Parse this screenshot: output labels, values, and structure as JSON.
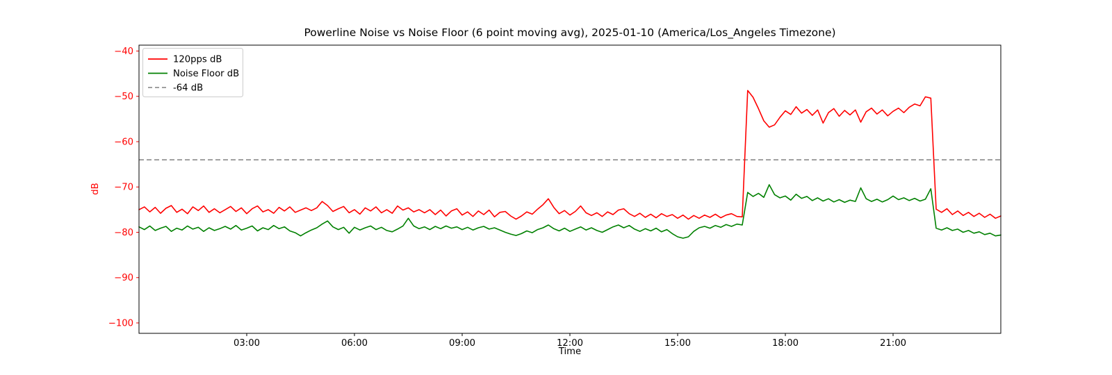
{
  "chart_data": {
    "type": "line",
    "title": "Powerline Noise vs Noise Floor (6 point moving avg), 2025-01-10 (America/Los_Angeles Timezone)",
    "xlabel": "Time",
    "ylabel": "dB",
    "xlim_hours": [
      0,
      24
    ],
    "ylim": [
      -102.3,
      -38.7
    ],
    "grid": false,
    "legend_position": "upper left",
    "x_ticks": [
      {
        "hours": 3,
        "label": "03:00"
      },
      {
        "hours": 6,
        "label": "06:00"
      },
      {
        "hours": 9,
        "label": "09:00"
      },
      {
        "hours": 12,
        "label": "12:00"
      },
      {
        "hours": 15,
        "label": "15:00"
      },
      {
        "hours": 18,
        "label": "18:00"
      },
      {
        "hours": 21,
        "label": "21:00"
      }
    ],
    "y_ticks": [
      {
        "value": -40,
        "label": "−40"
      },
      {
        "value": -50,
        "label": "−50"
      },
      {
        "value": -60,
        "label": "−60"
      },
      {
        "value": -70,
        "label": "−70"
      },
      {
        "value": -80,
        "label": "−80"
      },
      {
        "value": -90,
        "label": "−90"
      },
      {
        "value": -100,
        "label": "−100"
      }
    ],
    "y_tick_color": "#ff0000",
    "x_tick_color": "#000000",
    "threshold": {
      "label": "-64 dB",
      "value": -64,
      "style": "dashed",
      "color": "#808080"
    },
    "x_hours": {
      "start": 0,
      "step": 0.15,
      "count": 161
    },
    "series": [
      {
        "name": "120pps dB",
        "color": "#ff0000",
        "values": [
          -75.0,
          -74.4,
          -75.5,
          -74.5,
          -75.8,
          -74.7,
          -74.1,
          -75.6,
          -74.9,
          -75.9,
          -74.4,
          -75.2,
          -74.2,
          -75.6,
          -74.8,
          -75.7,
          -75.0,
          -74.3,
          -75.4,
          -74.6,
          -75.9,
          -74.8,
          -74.2,
          -75.5,
          -75.0,
          -75.8,
          -74.5,
          -75.3,
          -74.4,
          -75.6,
          -75.1,
          -74.6,
          -75.2,
          -74.6,
          -73.2,
          -74.1,
          -75.4,
          -74.8,
          -74.3,
          -75.7,
          -75.0,
          -76.0,
          -74.6,
          -75.3,
          -74.4,
          -75.7,
          -75.0,
          -75.8,
          -74.2,
          -75.1,
          -74.6,
          -75.5,
          -75.0,
          -75.7,
          -75.0,
          -76.1,
          -75.1,
          -76.4,
          -75.3,
          -74.8,
          -76.2,
          -75.5,
          -76.5,
          -75.3,
          -76.1,
          -75.1,
          -76.6,
          -75.6,
          -75.4,
          -76.4,
          -77.1,
          -76.4,
          -75.5,
          -76.0,
          -74.9,
          -73.9,
          -72.6,
          -74.5,
          -75.9,
          -75.2,
          -76.2,
          -75.4,
          -74.2,
          -75.7,
          -76.3,
          -75.7,
          -76.5,
          -75.5,
          -76.1,
          -75.1,
          -74.8,
          -75.9,
          -76.5,
          -75.8,
          -76.7,
          -76.0,
          -76.8,
          -75.9,
          -76.5,
          -76.1,
          -76.9,
          -76.2,
          -77.1,
          -76.3,
          -76.9,
          -76.2,
          -76.7,
          -76.0,
          -76.8,
          -76.2,
          -75.9,
          -76.5,
          -76.6,
          -48.7,
          -50.2,
          -52.7,
          -55.4,
          -56.8,
          -56.3,
          -54.6,
          -53.2,
          -54.0,
          -52.3,
          -53.7,
          -52.9,
          -54.2,
          -53.0,
          -55.9,
          -53.6,
          -52.7,
          -54.4,
          -53.1,
          -54.1,
          -53.0,
          -55.7,
          -53.4,
          -52.6,
          -53.9,
          -53.0,
          -54.3,
          -53.3,
          -52.6,
          -53.6,
          -52.4,
          -51.7,
          -52.1,
          -50.1,
          -50.4,
          -74.9,
          -75.6,
          -74.8,
          -76.1,
          -75.3,
          -76.3,
          -75.6,
          -76.5,
          -75.8,
          -76.7,
          -76.0,
          -76.9,
          -76.4
        ]
      },
      {
        "name": "Noise Floor dB",
        "color": "#008000",
        "values": [
          -78.8,
          -79.4,
          -78.6,
          -79.6,
          -79.1,
          -78.7,
          -79.8,
          -79.1,
          -79.5,
          -78.6,
          -79.3,
          -78.9,
          -79.8,
          -79.0,
          -79.6,
          -79.2,
          -78.7,
          -79.3,
          -78.5,
          -79.5,
          -79.1,
          -78.6,
          -79.7,
          -79.0,
          -79.4,
          -78.5,
          -79.2,
          -78.8,
          -79.7,
          -80.1,
          -80.8,
          -80.1,
          -79.5,
          -79.0,
          -78.2,
          -77.5,
          -78.8,
          -79.4,
          -78.9,
          -80.2,
          -78.9,
          -79.5,
          -79.0,
          -78.6,
          -79.4,
          -78.9,
          -79.6,
          -79.9,
          -79.3,
          -78.6,
          -76.9,
          -78.6,
          -79.2,
          -78.8,
          -79.4,
          -78.7,
          -79.2,
          -78.6,
          -79.1,
          -78.8,
          -79.4,
          -78.9,
          -79.5,
          -79.0,
          -78.7,
          -79.3,
          -79.0,
          -79.5,
          -80.0,
          -80.4,
          -80.7,
          -80.3,
          -79.7,
          -80.1,
          -79.4,
          -79.0,
          -78.4,
          -79.2,
          -79.7,
          -79.1,
          -79.8,
          -79.3,
          -78.8,
          -79.5,
          -79.0,
          -79.6,
          -80.0,
          -79.4,
          -78.8,
          -78.4,
          -79.0,
          -78.5,
          -79.3,
          -79.8,
          -79.2,
          -79.7,
          -79.1,
          -79.9,
          -79.4,
          -80.3,
          -81.0,
          -81.3,
          -81.0,
          -79.8,
          -79.0,
          -78.7,
          -79.1,
          -78.5,
          -78.9,
          -78.3,
          -78.7,
          -78.2,
          -78.4,
          -71.2,
          -72.1,
          -71.4,
          -72.3,
          -69.5,
          -71.7,
          -72.4,
          -72.0,
          -72.9,
          -71.6,
          -72.5,
          -72.1,
          -73.0,
          -72.4,
          -73.1,
          -72.6,
          -73.3,
          -72.8,
          -73.4,
          -72.9,
          -73.2,
          -70.2,
          -72.6,
          -73.2,
          -72.7,
          -73.3,
          -72.8,
          -72.0,
          -72.8,
          -72.4,
          -73.0,
          -72.5,
          -73.1,
          -72.7,
          -70.4,
          -79.1,
          -79.5,
          -79.0,
          -79.6,
          -79.3,
          -80.0,
          -79.6,
          -80.2,
          -79.9,
          -80.5,
          -80.2,
          -80.8,
          -80.6
        ]
      }
    ]
  }
}
